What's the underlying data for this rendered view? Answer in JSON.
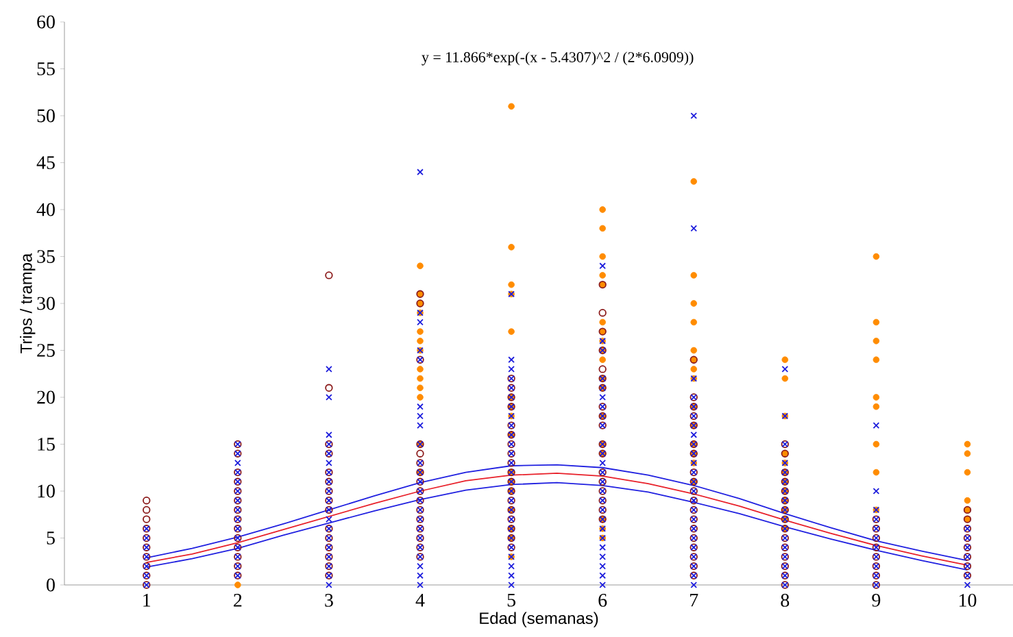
{
  "chart_data": {
    "type": "scatter",
    "xlabel": "Edad (semanas)",
    "ylabel": "Trips / trampa",
    "annotations": [
      "y = 11.866*exp(-(x - 5.4307)^2 / (2*6.0909))"
    ],
    "xlim": [
      0.1,
      10.5
    ],
    "ylim": [
      0,
      60
    ],
    "xticks": [
      1,
      2,
      3,
      4,
      5,
      6,
      7,
      8,
      9,
      10
    ],
    "yticks": [
      0,
      5,
      10,
      15,
      20,
      25,
      30,
      35,
      40,
      45,
      50,
      55,
      60
    ],
    "grid": false,
    "series": [
      {
        "marker": "circle",
        "color": "#ff8c00",
        "x": [
          2,
          4,
          4,
          4,
          4,
          4,
          4,
          4,
          4,
          4,
          4,
          4,
          4,
          4,
          5,
          5,
          5,
          5,
          5,
          5,
          5,
          5,
          5,
          5,
          5,
          5,
          5,
          5,
          5,
          5,
          6,
          6,
          6,
          6,
          6,
          6,
          6,
          6,
          6,
          6,
          6,
          6,
          6,
          6,
          6,
          6,
          6,
          6,
          7,
          7,
          7,
          7,
          7,
          7,
          7,
          7,
          7,
          7,
          7,
          7,
          7,
          7,
          8,
          8,
          8,
          8,
          8,
          8,
          8,
          8,
          8,
          8,
          8,
          8,
          9,
          9,
          9,
          9,
          9,
          9,
          9,
          9,
          9,
          10,
          10,
          10,
          10,
          10,
          10
        ],
        "values": [
          0,
          34,
          31,
          30,
          29,
          27,
          26,
          25,
          23,
          22,
          21,
          20,
          15,
          12,
          51,
          36,
          32,
          31,
          27,
          20,
          19,
          18,
          16,
          12,
          11,
          10,
          8,
          6,
          5,
          3,
          40,
          38,
          35,
          33,
          32,
          28,
          27,
          26,
          25,
          24,
          22,
          21,
          18,
          15,
          14,
          7,
          6,
          5,
          43,
          33,
          30,
          28,
          25,
          24,
          23,
          22,
          19,
          17,
          15,
          14,
          13,
          11,
          24,
          22,
          18,
          14,
          13,
          12,
          11,
          10,
          9,
          8,
          7,
          6,
          35,
          28,
          26,
          24,
          20,
          19,
          15,
          12,
          8,
          15,
          14,
          12,
          9,
          8,
          7
        ]
      },
      {
        "marker": "open circle",
        "color": "#8b1a1a",
        "x": [
          1,
          1,
          1,
          1,
          1,
          1,
          1,
          1,
          1,
          1,
          2,
          2,
          2,
          2,
          2,
          2,
          2,
          2,
          2,
          2,
          2,
          2,
          2,
          2,
          3,
          3,
          3,
          3,
          3,
          3,
          3,
          3,
          3,
          3,
          3,
          3,
          3,
          3,
          3,
          4,
          4,
          4,
          4,
          4,
          4,
          4,
          4,
          4,
          4,
          4,
          4,
          4,
          4,
          4,
          4,
          5,
          5,
          5,
          5,
          5,
          5,
          5,
          5,
          5,
          5,
          5,
          5,
          5,
          5,
          5,
          5,
          5,
          5,
          6,
          6,
          6,
          6,
          6,
          6,
          6,
          6,
          6,
          6,
          6,
          6,
          6,
          6,
          6,
          6,
          6,
          6,
          7,
          7,
          7,
          7,
          7,
          7,
          7,
          7,
          7,
          7,
          7,
          7,
          7,
          7,
          7,
          7,
          7,
          7,
          7,
          8,
          8,
          8,
          8,
          8,
          8,
          8,
          8,
          8,
          8,
          8,
          8,
          8,
          8,
          8,
          9,
          9,
          9,
          9,
          9,
          9,
          9,
          9,
          10,
          10,
          10,
          10,
          10,
          10,
          10,
          10
        ],
        "values": [
          9,
          8,
          7,
          6,
          5,
          4,
          3,
          2,
          1,
          0,
          15,
          14,
          12,
          11,
          10,
          9,
          8,
          7,
          6,
          5,
          4,
          3,
          2,
          1,
          33,
          21,
          15,
          14,
          12,
          11,
          10,
          9,
          8,
          6,
          5,
          4,
          3,
          2,
          1,
          31,
          30,
          24,
          15,
          14,
          13,
          12,
          11,
          10,
          9,
          8,
          7,
          6,
          5,
          4,
          3,
          22,
          21,
          20,
          19,
          17,
          16,
          15,
          14,
          13,
          12,
          11,
          10,
          9,
          8,
          7,
          6,
          5,
          4,
          32,
          29,
          27,
          25,
          23,
          22,
          21,
          19,
          18,
          17,
          15,
          14,
          12,
          11,
          10,
          9,
          8,
          7,
          24,
          20,
          19,
          18,
          17,
          15,
          14,
          12,
          11,
          10,
          9,
          8,
          7,
          6,
          5,
          4,
          3,
          2,
          1,
          15,
          14,
          12,
          11,
          10,
          9,
          8,
          7,
          6,
          5,
          4,
          3,
          2,
          1,
          0,
          7,
          6,
          5,
          4,
          3,
          2,
          1,
          0,
          8,
          7,
          6,
          5,
          4,
          3,
          2,
          1
        ]
      },
      {
        "marker": "cross",
        "color": "#1c1cdc",
        "x": [
          1,
          1,
          1,
          1,
          1,
          1,
          1,
          2,
          2,
          2,
          2,
          2,
          2,
          2,
          2,
          2,
          2,
          2,
          2,
          2,
          2,
          2,
          3,
          3,
          3,
          3,
          3,
          3,
          3,
          3,
          3,
          3,
          3,
          3,
          3,
          3,
          3,
          3,
          3,
          3,
          3,
          4,
          4,
          4,
          4,
          4,
          4,
          4,
          4,
          4,
          4,
          4,
          4,
          4,
          4,
          4,
          4,
          4,
          4,
          4,
          4,
          4,
          4,
          4,
          5,
          5,
          5,
          5,
          5,
          5,
          5,
          5,
          5,
          5,
          5,
          5,
          5,
          5,
          5,
          5,
          5,
          5,
          5,
          5,
          5,
          5,
          5,
          5,
          5,
          5,
          6,
          6,
          6,
          6,
          6,
          6,
          6,
          6,
          6,
          6,
          6,
          6,
          6,
          6,
          6,
          6,
          6,
          6,
          6,
          6,
          6,
          6,
          6,
          6,
          6,
          7,
          7,
          7,
          7,
          7,
          7,
          7,
          7,
          7,
          7,
          7,
          7,
          7,
          7,
          7,
          7,
          7,
          7,
          7,
          7,
          7,
          7,
          7,
          7,
          8,
          8,
          8,
          8,
          8,
          8,
          8,
          8,
          8,
          8,
          8,
          8,
          8,
          8,
          8,
          8,
          8,
          9,
          9,
          9,
          9,
          9,
          9,
          9,
          9,
          9,
          9,
          9,
          10,
          10,
          10,
          10,
          10,
          10,
          10
        ],
        "values": [
          6,
          5,
          4,
          3,
          2,
          1,
          0,
          15,
          14,
          13,
          12,
          11,
          10,
          9,
          8,
          7,
          6,
          5,
          4,
          3,
          2,
          1,
          23,
          20,
          16,
          15,
          14,
          13,
          12,
          11,
          10,
          9,
          8,
          7,
          6,
          5,
          4,
          3,
          2,
          1,
          0,
          44,
          29,
          28,
          25,
          24,
          19,
          18,
          17,
          15,
          13,
          12,
          11,
          10,
          9,
          8,
          7,
          6,
          5,
          4,
          3,
          2,
          1,
          0,
          31,
          24,
          23,
          22,
          21,
          20,
          19,
          18,
          17,
          16,
          15,
          14,
          13,
          12,
          11,
          10,
          9,
          8,
          7,
          6,
          5,
          4,
          3,
          2,
          1,
          0,
          34,
          26,
          25,
          22,
          21,
          20,
          19,
          18,
          17,
          15,
          14,
          13,
          12,
          11,
          10,
          9,
          8,
          7,
          6,
          5,
          4,
          3,
          2,
          1,
          0,
          50,
          38,
          22,
          20,
          19,
          18,
          17,
          16,
          15,
          14,
          13,
          12,
          11,
          10,
          9,
          8,
          7,
          6,
          5,
          4,
          3,
          2,
          1,
          0,
          23,
          18,
          15,
          13,
          12,
          11,
          10,
          9,
          8,
          7,
          6,
          5,
          4,
          3,
          2,
          1,
          0,
          17,
          10,
          8,
          7,
          6,
          5,
          4,
          3,
          2,
          1,
          0,
          6,
          5,
          4,
          3,
          2,
          1,
          0
        ]
      },
      {
        "type": "line",
        "marker": "none",
        "color": "#2020e0",
        "x": [
          1,
          1.5,
          2,
          2.5,
          3,
          3.5,
          4,
          4.5,
          5,
          5.5,
          6,
          6.5,
          7,
          7.5,
          8,
          8.5,
          9,
          9.5,
          10
        ],
        "values": [
          2.9,
          3.9,
          5.1,
          6.5,
          8.0,
          9.5,
          10.9,
          12.0,
          12.7,
          12.8,
          12.5,
          11.7,
          10.6,
          9.2,
          7.6,
          6.1,
          4.7,
          3.6,
          2.6
        ]
      },
      {
        "type": "line",
        "marker": "none",
        "color": "#e8202a",
        "x": [
          1,
          1.5,
          2,
          2.5,
          3,
          3.5,
          4,
          4.5,
          5,
          5.5,
          6,
          6.5,
          7,
          7.5,
          8,
          8.5,
          9,
          9.5,
          10
        ],
        "values": [
          2.4,
          3.3,
          4.5,
          5.9,
          7.3,
          8.7,
          10.0,
          11.1,
          11.7,
          11.9,
          11.6,
          10.8,
          9.7,
          8.4,
          6.9,
          5.5,
          4.2,
          3.1,
          2.1
        ]
      },
      {
        "type": "line",
        "marker": "none",
        "color": "#2020e0",
        "x": [
          1,
          1.5,
          2,
          2.5,
          3,
          3.5,
          4,
          4.5,
          5,
          5.5,
          6,
          6.5,
          7,
          7.5,
          8,
          8.5,
          9,
          9.5,
          10
        ],
        "values": [
          1.9,
          2.8,
          3.9,
          5.3,
          6.6,
          7.9,
          9.1,
          10.1,
          10.7,
          10.9,
          10.6,
          9.9,
          8.8,
          7.6,
          6.2,
          4.9,
          3.7,
          2.6,
          1.6
        ]
      }
    ]
  }
}
